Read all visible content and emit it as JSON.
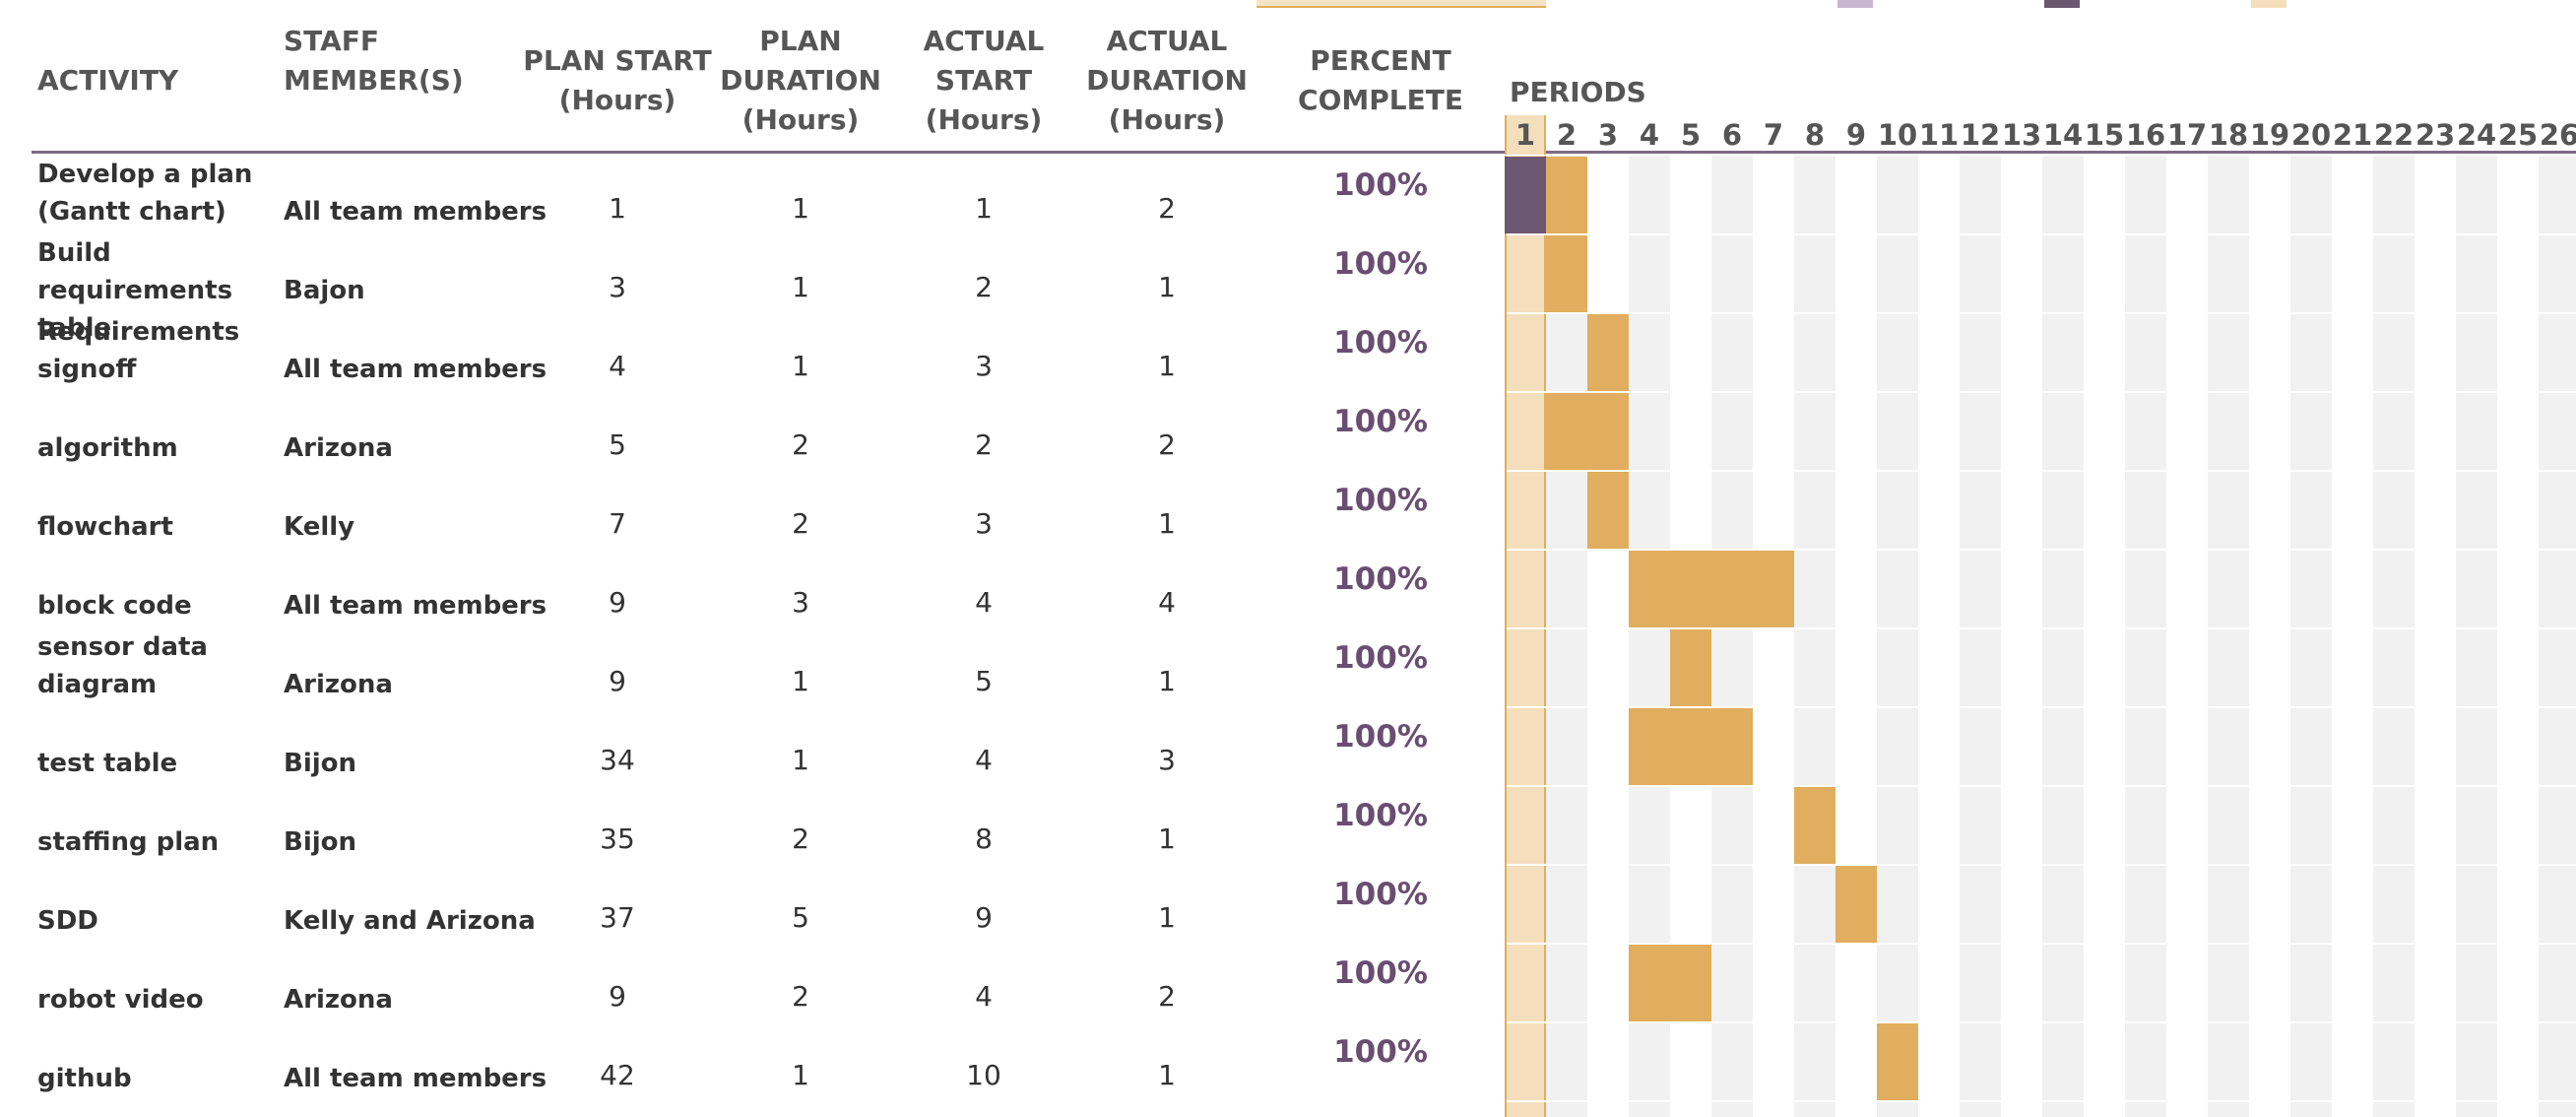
{
  "colors": {
    "plan": "#6c5770",
    "actual": "#e0ae5e",
    "current_period": "#f4dfbd",
    "stripe": "#f1f1f1",
    "percent": "#6a4e72",
    "header_line": "#7d6b86"
  },
  "headers": {
    "activity": "ACTIVITY",
    "staff": "STAFF\nMEMBER(S)",
    "plan_start": "PLAN START\n(Hours)",
    "plan_duration": "PLAN\nDURATION\n(Hours)",
    "actual_start": "ACTUAL\nSTART\n(Hours)",
    "actual_duration": "ACTUAL\nDURATION\n(Hours)",
    "percent": "PERCENT\nCOMPLETE",
    "periods": "PERIODS"
  },
  "highlighted_period": 1,
  "periods": [
    "1",
    "2",
    "3",
    "4",
    "5",
    "6",
    "7",
    "8",
    "9",
    "10",
    "11",
    "12",
    "13",
    "14",
    "15",
    "16",
    "17",
    "18",
    "19",
    "20",
    "21",
    "22",
    "23",
    "24",
    "25",
    "26"
  ],
  "rows": [
    {
      "activity": "Develop a plan\n(Gantt chart)",
      "staff": "All team members",
      "plan_start": "1",
      "plan_duration": "1",
      "actual_start": "1",
      "actual_duration": "2",
      "percent": "100%"
    },
    {
      "activity": "Build requirements\ntable",
      "staff": "Bajon",
      "plan_start": "3",
      "plan_duration": "1",
      "actual_start": "2",
      "actual_duration": "1",
      "percent": "100%"
    },
    {
      "activity": "Requirements\nsignoff",
      "staff": "All team members",
      "plan_start": "4",
      "plan_duration": "1",
      "actual_start": "3",
      "actual_duration": "1",
      "percent": "100%"
    },
    {
      "activity": "algorithm",
      "staff": "Arizona",
      "plan_start": "5",
      "plan_duration": "2",
      "actual_start": "2",
      "actual_duration": "2",
      "percent": "100%"
    },
    {
      "activity": "flowchart",
      "staff": "Kelly",
      "plan_start": "7",
      "plan_duration": "2",
      "actual_start": "3",
      "actual_duration": "1",
      "percent": "100%"
    },
    {
      "activity": "block code",
      "staff": "All team members",
      "plan_start": "9",
      "plan_duration": "3",
      "actual_start": "4",
      "actual_duration": "4",
      "percent": "100%"
    },
    {
      "activity": "sensor data\ndiagram",
      "staff": "Arizona",
      "plan_start": "9",
      "plan_duration": "1",
      "actual_start": "5",
      "actual_duration": "1",
      "percent": "100%"
    },
    {
      "activity": "test table",
      "staff": "Bijon",
      "plan_start": "34",
      "plan_duration": "1",
      "actual_start": "4",
      "actual_duration": "3",
      "percent": "100%"
    },
    {
      "activity": "staffing plan",
      "staff": "Bijon",
      "plan_start": "35",
      "plan_duration": "2",
      "actual_start": "8",
      "actual_duration": "1",
      "percent": "100%"
    },
    {
      "activity": "SDD",
      "staff": "Kelly and Arizona",
      "plan_start": "37",
      "plan_duration": "5",
      "actual_start": "9",
      "actual_duration": "1",
      "percent": "100%"
    },
    {
      "activity": "robot video",
      "staff": "Arizona",
      "plan_start": "9",
      "plan_duration": "2",
      "actual_start": "4",
      "actual_duration": "2",
      "percent": "100%"
    },
    {
      "activity": "github",
      "staff": "All team members",
      "plan_start": "42",
      "plan_duration": "1",
      "actual_start": "10",
      "actual_duration": "1",
      "percent": "100%"
    }
  ]
}
